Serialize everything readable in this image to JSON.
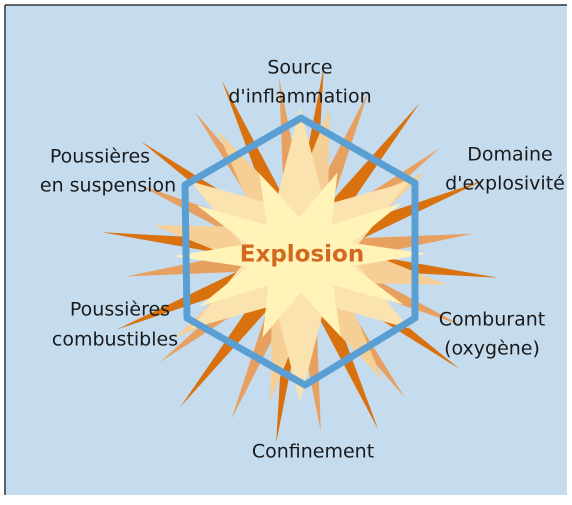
{
  "center": "Explosion",
  "nodes": [
    {
      "lines": [
        "Source",
        "d'inflammation"
      ]
    },
    {
      "lines": [
        "Domaine",
        "d'explosivité"
      ]
    },
    {
      "lines": [
        "Comburant",
        "(oxygène)"
      ]
    },
    {
      "lines": [
        "Confinement"
      ]
    },
    {
      "lines": [
        "Poussières",
        "combustibles"
      ]
    },
    {
      "lines": [
        "Poussières",
        "en suspension"
      ]
    }
  ]
}
